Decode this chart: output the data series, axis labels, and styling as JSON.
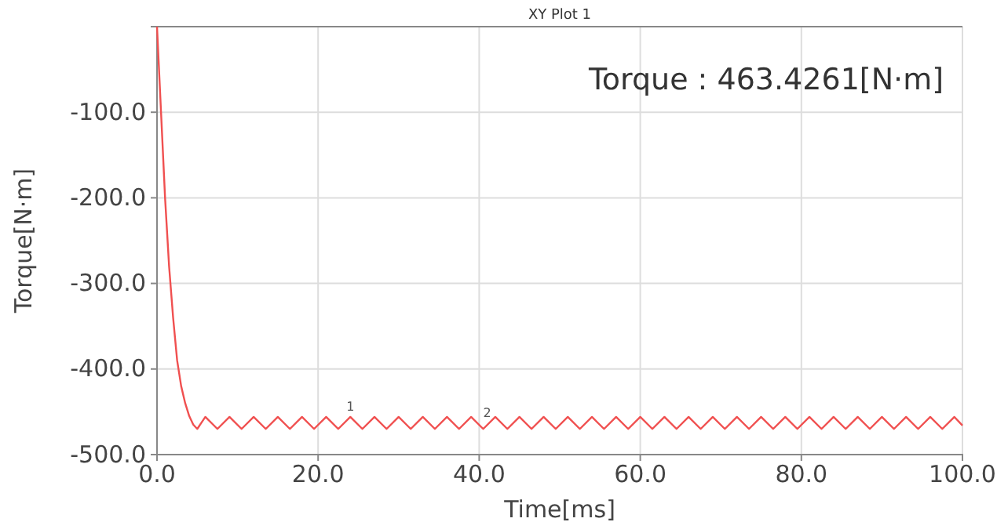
{
  "chart_data": {
    "type": "line",
    "title": "XY Plot 1",
    "xlabel": "Time[ms]",
    "ylabel": "Torque[N·m]",
    "x": [
      0,
      0.5,
      1,
      1.5,
      2,
      2.5,
      3,
      3.5,
      4,
      4.5,
      5,
      6,
      7.5,
      9,
      10.5,
      12,
      13.5,
      15,
      16.5,
      18,
      19.5,
      21,
      22.5,
      24,
      25.5,
      27,
      28.5,
      30,
      31.5,
      33,
      34.5,
      36,
      37.5,
      39,
      40.5,
      42,
      43.5,
      45,
      46.5,
      48,
      49.5,
      51,
      52.5,
      54,
      55.5,
      57,
      58.5,
      60,
      61.5,
      63,
      64.5,
      66,
      67.5,
      69,
      70.5,
      72,
      73.5,
      75,
      76.5,
      78,
      79.5,
      81,
      82.5,
      84,
      85.5,
      87,
      88.5,
      90,
      91.5,
      93,
      94.5,
      96,
      97.5,
      99,
      100
    ],
    "series": [
      {
        "color": "#f05050",
        "values": [
          0,
          -100,
          -200,
          -280,
          -340,
          -390,
          -420,
          -440,
          -455,
          -465,
          -470,
          -456,
          -470,
          -456,
          -470,
          -456,
          -470,
          -456,
          -470,
          -456,
          -470,
          -456,
          -470,
          -456,
          -470,
          -456,
          -470,
          -456,
          -470,
          -456,
          -470,
          -456,
          -470,
          -456,
          -470,
          -456,
          -470,
          -456,
          -470,
          -456,
          -470,
          -456,
          -470,
          -456,
          -470,
          -456,
          -470,
          -456,
          -470,
          -456,
          -470,
          -456,
          -470,
          -456,
          -470,
          -456,
          -470,
          -456,
          -470,
          -456,
          -470,
          -456,
          -470,
          -456,
          -470,
          -456,
          -470,
          -456,
          -470,
          -456,
          -470,
          -456,
          -470,
          -456,
          -466
        ]
      }
    ],
    "xlim": [
      0,
      100
    ],
    "xticks": [
      {
        "value": 0,
        "label": "0.0"
      },
      {
        "value": 20,
        "label": "20.0"
      },
      {
        "value": 40,
        "label": "40.0"
      },
      {
        "value": 60,
        "label": "60.0"
      },
      {
        "value": 80,
        "label": "80.0"
      },
      {
        "value": 100,
        "label": "100.0"
      }
    ],
    "ylim": [
      -500,
      0
    ],
    "yticks": [
      {
        "value": -500,
        "label": "-500.0"
      },
      {
        "value": -400,
        "label": "-400.0"
      },
      {
        "value": -300,
        "label": "-300.0"
      },
      {
        "value": -200,
        "label": "-200.0"
      },
      {
        "value": -100,
        "label": "-100.0"
      }
    ],
    "grid": true,
    "line_style": "solid",
    "annotations": [
      "Torque : 463.4261[N·m]",
      {
        "text": "1",
        "x": 24,
        "y": -456
      },
      {
        "text": "2",
        "x": 41,
        "y": -463
      }
    ]
  }
}
